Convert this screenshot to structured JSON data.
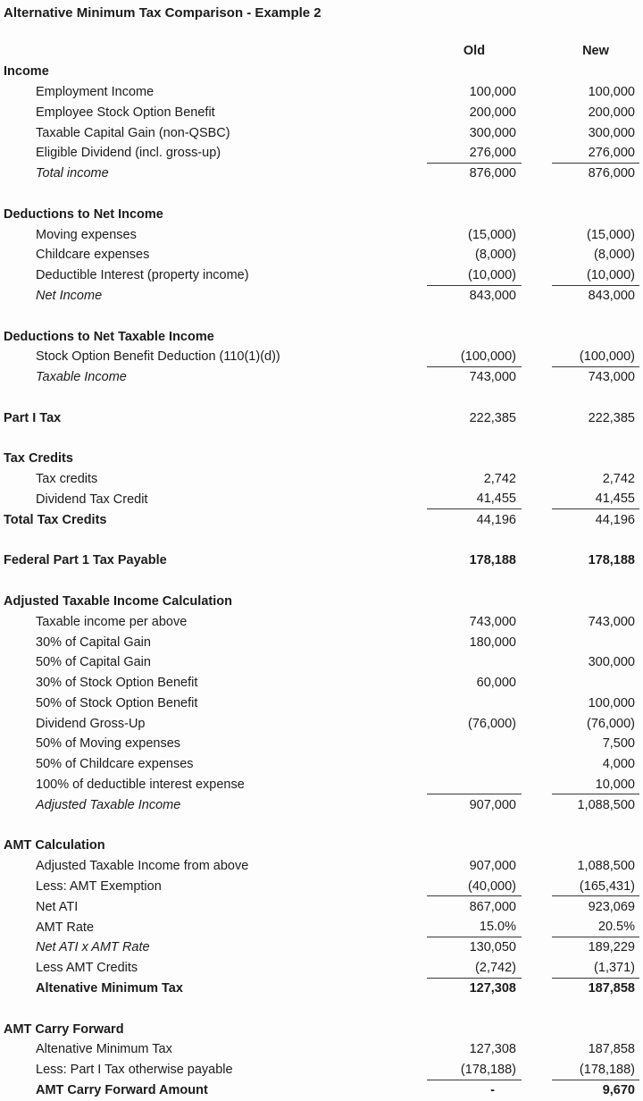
{
  "title": "Alternative Minimum Tax Comparison - Example 2",
  "columns": {
    "old": "Old",
    "new": "New"
  },
  "rows": [
    {
      "t": "colhead"
    },
    {
      "t": "sec",
      "label": "Income"
    },
    {
      "t": "item",
      "label": "Employment Income",
      "old": "100,000",
      "new": "100,000"
    },
    {
      "t": "item",
      "label": "Employee Stock Option Benefit",
      "old": "200,000",
      "new": "200,000"
    },
    {
      "t": "item",
      "label": "Taxable Capital Gain (non-QSBC)",
      "old": "300,000",
      "new": "300,000"
    },
    {
      "t": "item",
      "label": "Eligible Dividend (incl. gross-up)",
      "old": "276,000",
      "new": "276,000",
      "u": true
    },
    {
      "t": "item",
      "label": "Total income",
      "old": "876,000",
      "new": "876,000",
      "i": true
    },
    {
      "t": "sp"
    },
    {
      "t": "sec",
      "label": "Deductions to Net Income"
    },
    {
      "t": "item",
      "label": "Moving expenses",
      "old": "(15,000)",
      "new": "(15,000)"
    },
    {
      "t": "item",
      "label": "Childcare expenses",
      "old": "(8,000)",
      "new": "(8,000)"
    },
    {
      "t": "item",
      "label": "Deductible Interest (property income)",
      "old": "(10,000)",
      "new": "(10,000)",
      "u": true
    },
    {
      "t": "item",
      "label": "Net Income",
      "old": "843,000",
      "new": "843,000",
      "i": true
    },
    {
      "t": "sp"
    },
    {
      "t": "sec",
      "label": "Deductions to Net Taxable Income"
    },
    {
      "t": "item",
      "label": "Stock Option Benefit Deduction (110(1)(d))",
      "old": "(100,000)",
      "new": "(100,000)",
      "u": true
    },
    {
      "t": "item",
      "label": "Taxable Income",
      "old": "743,000",
      "new": "743,000",
      "i": true
    },
    {
      "t": "sp"
    },
    {
      "t": "item",
      "label": "Part I Tax",
      "old": "222,385",
      "new": "222,385",
      "bl": true,
      "indent": false
    },
    {
      "t": "sp"
    },
    {
      "t": "sec",
      "label": "Tax Credits"
    },
    {
      "t": "item",
      "label": "Tax credits",
      "old": "2,742",
      "new": "2,742"
    },
    {
      "t": "item",
      "label": "Dividend Tax Credit",
      "old": "41,455",
      "new": "41,455",
      "u": true
    },
    {
      "t": "item",
      "label": "Total Tax Credits",
      "old": "44,196",
      "new": "44,196",
      "bl": true,
      "indent": false
    },
    {
      "t": "sp"
    },
    {
      "t": "item",
      "label": "Federal Part 1 Tax Payable",
      "old": "178,188",
      "new": "178,188",
      "bl": true,
      "bv": true,
      "indent": false
    },
    {
      "t": "sp"
    },
    {
      "t": "sec",
      "label": "Adjusted Taxable Income Calculation"
    },
    {
      "t": "item",
      "label": "Taxable income per above",
      "old": "743,000",
      "new": "743,000"
    },
    {
      "t": "item",
      "label": "30% of Capital Gain",
      "old": "180,000",
      "new": ""
    },
    {
      "t": "item",
      "label": "50% of Capital Gain",
      "old": "",
      "new": "300,000"
    },
    {
      "t": "item",
      "label": "30% of Stock Option Benefit",
      "old": "60,000",
      "new": ""
    },
    {
      "t": "item",
      "label": "50% of Stock Option Benefit",
      "old": "",
      "new": "100,000"
    },
    {
      "t": "item",
      "label": "Dividend Gross-Up",
      "old": "(76,000)",
      "new": "(76,000)"
    },
    {
      "t": "item",
      "label": "50% of Moving expenses",
      "old": "",
      "new": "7,500"
    },
    {
      "t": "item",
      "label": "50% of Childcare expenses",
      "old": "",
      "new": "4,000"
    },
    {
      "t": "item",
      "label": "100% of deductible interest expense",
      "old": "",
      "new": "10,000",
      "u": true
    },
    {
      "t": "item",
      "label": "Adjusted Taxable Income",
      "old": "907,000",
      "new": "1,088,500",
      "i": true
    },
    {
      "t": "sp"
    },
    {
      "t": "sec",
      "label": "AMT Calculation"
    },
    {
      "t": "item",
      "label": "Adjusted Taxable Income from above",
      "old": "907,000",
      "new": "1,088,500"
    },
    {
      "t": "item",
      "label": "Less: AMT Exemption",
      "old": "(40,000)",
      "new": "(165,431)",
      "u": true
    },
    {
      "t": "item",
      "label": "Net ATI",
      "old": "867,000",
      "new": "923,069"
    },
    {
      "t": "item",
      "label": "AMT Rate",
      "old": "15.0%",
      "new": "20.5%",
      "u": true
    },
    {
      "t": "item",
      "label": "Net ATI x AMT Rate",
      "old": "130,050",
      "new": "189,229",
      "i": true
    },
    {
      "t": "item",
      "label": "Less AMT Credits",
      "old": "(2,742)",
      "new": "(1,371)",
      "u": true
    },
    {
      "t": "item",
      "label": "Altenative Minimum Tax",
      "old": "127,308",
      "new": "187,858",
      "bl": true,
      "bv": true
    },
    {
      "t": "sp"
    },
    {
      "t": "sec",
      "label": "AMT Carry Forward"
    },
    {
      "t": "item",
      "label": "Altenative Minimum Tax",
      "old": "127,308",
      "new": "187,858"
    },
    {
      "t": "item",
      "label": "Less: Part I Tax otherwise payable",
      "old": "(178,188)",
      "new": "(178,188)",
      "u": true
    },
    {
      "t": "item",
      "label": "AMT Carry Forward Amount",
      "old": "-",
      "new": "9,670",
      "bl": true,
      "bv": true
    }
  ]
}
